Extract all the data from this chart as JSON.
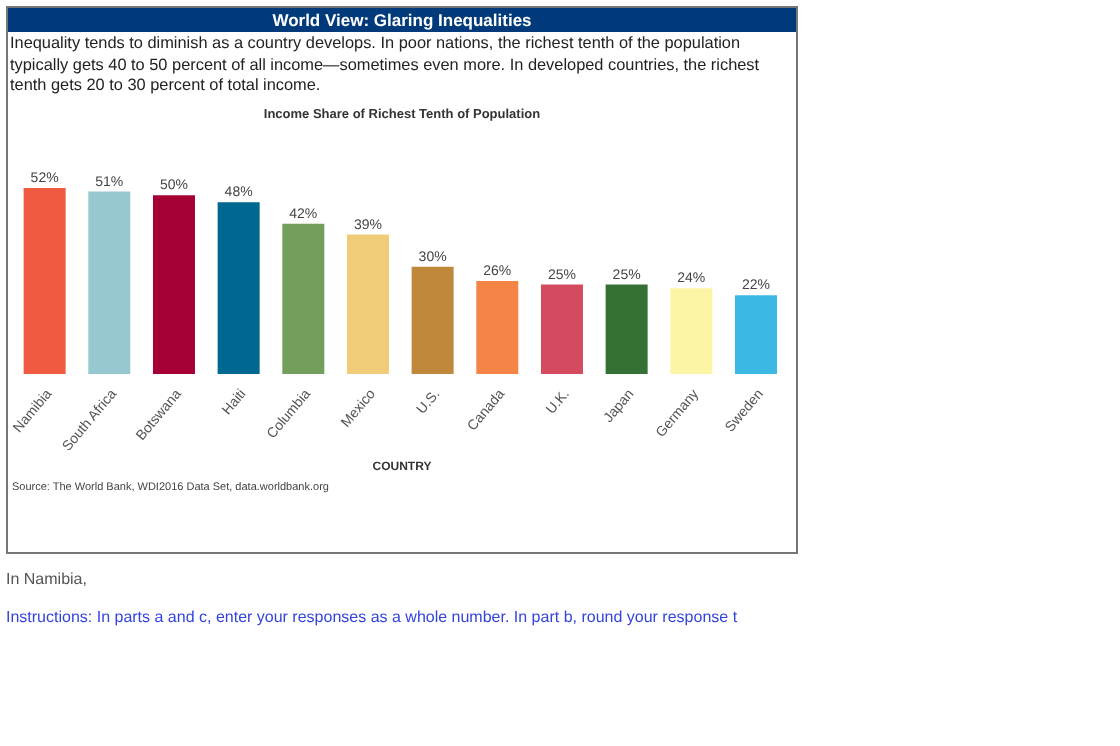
{
  "chart_data": {
    "type": "bar",
    "title": "Income Share of Richest Tenth of Population",
    "xlabel": "COUNTRY",
    "annotations": [
      "World View: Glaring Inequalities",
      "Inequality tends to diminish as a country develops. In poor nations, the richest tenth of the population typically gets 40 to 50 percent of all income—sometimes even more. In developed countries, the richest tenth gets 20 to 30 percent of total income.",
      "Source: The World Bank, WDI2016 Data Set, data.worldbank.org",
      "In Namibia,",
      "Instructions: In parts a and c, enter your responses as a whole number. In part b, round your response t"
    ],
    "categories": [
      "Namibia",
      "South Africa",
      "Botswana",
      "Haiti",
      "Columbia",
      "Mexico",
      "U.S.",
      "Canada",
      "U.K.",
      "Japan",
      "Germany",
      "Sweden"
    ],
    "values": [
      52,
      51,
      50,
      48,
      42,
      39,
      30,
      26,
      25,
      25,
      24,
      22
    ],
    "value_labels": [
      "52%",
      "51%",
      "50%",
      "48%",
      "42%",
      "39%",
      "30%",
      "26%",
      "25%",
      "25%",
      "24%",
      "22%"
    ],
    "colors": [
      "#f05a40",
      "#97c8d0",
      "#a50034",
      "#006890",
      "#72a05c",
      "#f0cc78",
      "#c0883a",
      "#f58546",
      "#d44a5e",
      "#357034",
      "#fdf5a6",
      "#3cb8e4"
    ]
  }
}
